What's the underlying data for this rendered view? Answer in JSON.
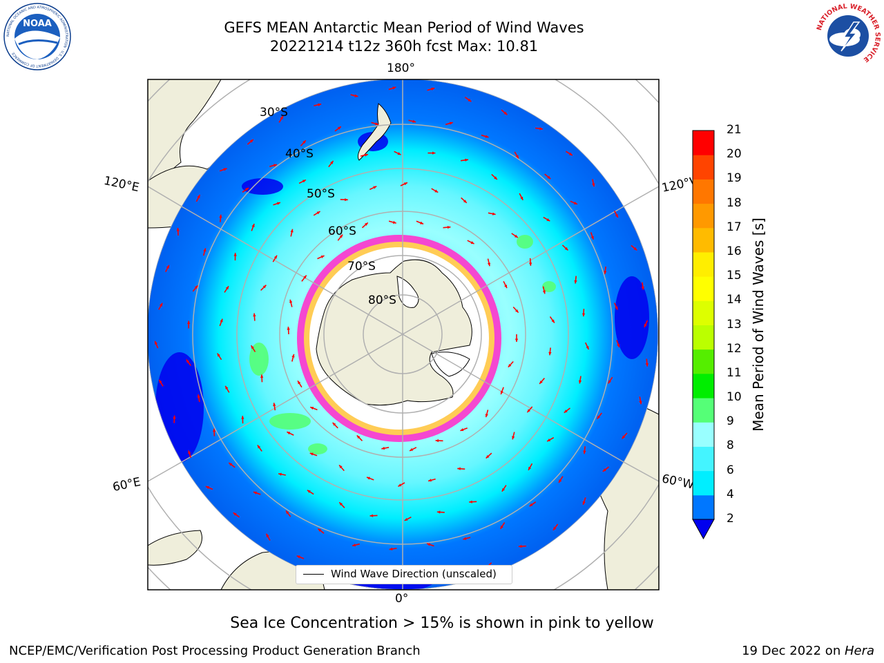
{
  "header": {
    "title_line1": "GEFS MEAN Antarctic Mean Period of Wind Waves",
    "title_line2": "20221214 t12z 360h fcst   Max: 10.81"
  },
  "logos": {
    "noaa": {
      "text": "NOAA",
      "ring_text": "NATIONAL OCEANIC AND ATMOSPHERIC ADMINISTRATION · U.S. DEPARTMENT OF COMMERCE"
    },
    "nws": {
      "ring_text": "NATIONAL WEATHER SERVICE"
    }
  },
  "map": {
    "longitude_labels": {
      "top": "180°",
      "bottom": "0°",
      "left_upper": "120°E",
      "left_lower": "60°E",
      "right_upper": "120°W",
      "right_lower": "60°W"
    },
    "latitude_labels": [
      "30°S",
      "40°S",
      "50°S",
      "60°S",
      "70°S",
      "80°S"
    ],
    "legend": {
      "label": "Wind Wave Direction (unscaled)"
    },
    "colors": {
      "land": "#efeedb",
      "ice_free_pole": "#ffffff",
      "arrow": "#ff0000"
    }
  },
  "colorbar": {
    "label": "Mean Period of Wind Waves [s]",
    "ticks": [
      "2",
      "4",
      "6",
      "8",
      "9",
      "10",
      "11",
      "12",
      "13",
      "14",
      "15",
      "16",
      "17",
      "18",
      "19",
      "20",
      "21"
    ],
    "colors": [
      "#0077ff",
      "#00eeff",
      "#44f4ff",
      "#99ffff",
      "#55ff77",
      "#00ee00",
      "#55ee00",
      "#bbff00",
      "#ddff00",
      "#ffff00",
      "#ffee00",
      "#ffbb00",
      "#ff9900",
      "#ff7700",
      "#ff4400",
      "#ff0000"
    ],
    "extend_color": "#0000ee"
  },
  "footer": {
    "caption": "Sea Ice Concentration > 15% is shown in pink to yellow",
    "left": "NCEP/EMC/Verification Post Processing Product Generation Branch",
    "right_prefix": "19 Dec 2022 on ",
    "right_emph": "Hera"
  }
}
